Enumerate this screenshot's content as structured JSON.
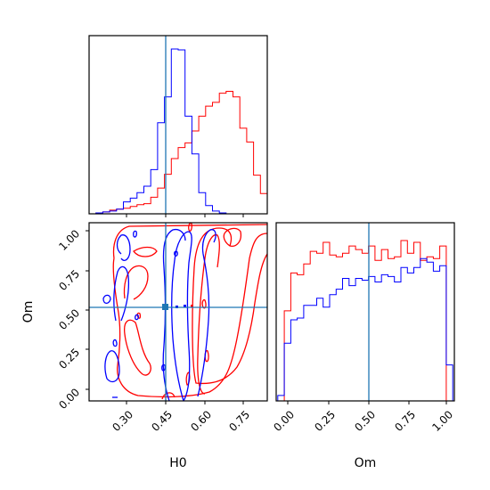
{
  "colors": {
    "series_red": "#ff0000",
    "series_blue": "#0000ff",
    "truth_line": "#1f77b4",
    "frame": "#000000"
  },
  "chart_data": [
    {
      "type": "histogram",
      "panel": "H0 marginal",
      "xlim": [
        0.2,
        0.85
      ],
      "truth": 0.45,
      "bin_edges": [
        0.225,
        0.25,
        0.275,
        0.3,
        0.325,
        0.35,
        0.375,
        0.4,
        0.425,
        0.45,
        0.475,
        0.5,
        0.525,
        0.55,
        0.575,
        0.6,
        0.625,
        0.65,
        0.675,
        0.7,
        0.725,
        0.75,
        0.775,
        0.8,
        0.825,
        0.85
      ],
      "series": [
        {
          "color": "red",
          "counts": [
            1,
            2,
            4,
            5,
            6,
            8,
            10,
            11,
            18,
            28,
            43,
            60,
            72,
            77,
            90,
            106,
            117,
            121,
            131,
            133,
            127,
            93,
            78,
            42,
            22
          ]
        },
        {
          "color": "blue",
          "counts": [
            1,
            2,
            3,
            5,
            13,
            17,
            23,
            30,
            48,
            99,
            127,
            179,
            178,
            106,
            65,
            23,
            9,
            3,
            1,
            0,
            0,
            0,
            0,
            0,
            0
          ]
        }
      ]
    },
    {
      "type": "contour",
      "panel": "H0 vs Om joint",
      "xlabel": "H0",
      "ylabel": "Om",
      "xlim": [
        0.2,
        0.85
      ],
      "ylim": [
        -0.05,
        1.05
      ],
      "xticks": [
        "0.30",
        "0.45",
        "0.60",
        "0.75"
      ],
      "yticks": [
        "0.00",
        "0.25",
        "0.50",
        "0.75",
        "1.00"
      ],
      "truth": [
        0.45,
        0.52
      ],
      "series": [
        {
          "color": "red",
          "note": "red contours spanning H0 0.30-0.85, concentrated at H0 0.55-0.85"
        },
        {
          "color": "blue",
          "note": "blue contours spanning H0 0.25-0.55, concentrated at H0 0.45-0.55"
        }
      ]
    },
    {
      "type": "histogram",
      "panel": "Om marginal",
      "xlabel": "Om",
      "xlim": [
        -0.05,
        1.05
      ],
      "xticks": [
        "0.00",
        "0.25",
        "0.50",
        "0.75",
        "1.00"
      ],
      "truth": 0.52,
      "bin_edges": [
        -0.04,
        0,
        0.04,
        0.08,
        0.12,
        0.16,
        0.2,
        0.24,
        0.28,
        0.32,
        0.36,
        0.4,
        0.44,
        0.48,
        0.52,
        0.56,
        0.6,
        0.64,
        0.68,
        0.72,
        0.76,
        0.8,
        0.84,
        0.88,
        0.92,
        0.96,
        1.0,
        1.04
      ],
      "series": [
        {
          "color": "red",
          "counts": [
            0,
            50,
            71,
            70,
            76,
            83,
            82,
            88,
            81,
            80,
            82,
            86,
            84,
            82,
            86,
            78,
            84,
            79,
            80,
            89,
            82,
            88,
            78,
            80,
            79,
            86,
            0
          ]
        },
        {
          "color": "blue",
          "counts": [
            3,
            32,
            45,
            46,
            53,
            53,
            57,
            52,
            59,
            62,
            68,
            64,
            68,
            67,
            69,
            66,
            70,
            69,
            66,
            74,
            71,
            74,
            79,
            77,
            72,
            75,
            20
          ]
        }
      ]
    }
  ]
}
